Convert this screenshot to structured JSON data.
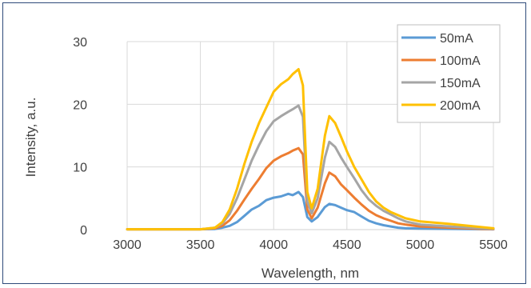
{
  "colors": {
    "frame": "#2f4b7a",
    "grid": "#d9d9d9",
    "text": "#404040"
  },
  "chart_data": {
    "type": "line",
    "title": "",
    "xlabel": "Wavelength, nm",
    "ylabel": "Intensity, a.u.",
    "xlim": [
      3000,
      5500
    ],
    "ylim": [
      0,
      30
    ],
    "xticks": [
      3000,
      3500,
      4000,
      4500,
      5000,
      5500
    ],
    "yticks": [
      0,
      10,
      20,
      30
    ],
    "grid": true,
    "legend": "top-right",
    "series": [
      {
        "name": "50mA",
        "color": "#5b9bd5",
        "points": [
          [
            3000,
            0.05
          ],
          [
            3500,
            0.05
          ],
          [
            3600,
            0.1
          ],
          [
            3650,
            0.3
          ],
          [
            3700,
            0.6
          ],
          [
            3750,
            1.2
          ],
          [
            3800,
            2.2
          ],
          [
            3850,
            3.2
          ],
          [
            3900,
            3.8
          ],
          [
            3950,
            4.7
          ],
          [
            4000,
            5.1
          ],
          [
            4050,
            5.3
          ],
          [
            4100,
            5.7
          ],
          [
            4130,
            5.5
          ],
          [
            4170,
            6.0
          ],
          [
            4200,
            5.2
          ],
          [
            4230,
            2.0
          ],
          [
            4260,
            1.3
          ],
          [
            4300,
            2.0
          ],
          [
            4350,
            3.6
          ],
          [
            4380,
            4.1
          ],
          [
            4420,
            3.9
          ],
          [
            4460,
            3.5
          ],
          [
            4500,
            3.1
          ],
          [
            4550,
            2.8
          ],
          [
            4600,
            2.1
          ],
          [
            4650,
            1.4
          ],
          [
            4700,
            1.0
          ],
          [
            4750,
            0.7
          ],
          [
            4800,
            0.5
          ],
          [
            4850,
            0.3
          ],
          [
            4900,
            0.2
          ],
          [
            5000,
            0.15
          ],
          [
            5500,
            0.05
          ]
        ]
      },
      {
        "name": "100mA",
        "color": "#ed7d31",
        "points": [
          [
            3000,
            0.05
          ],
          [
            3500,
            0.05
          ],
          [
            3600,
            0.2
          ],
          [
            3650,
            0.6
          ],
          [
            3700,
            1.5
          ],
          [
            3750,
            3.0
          ],
          [
            3800,
            4.8
          ],
          [
            3850,
            6.5
          ],
          [
            3900,
            8.1
          ],
          [
            3950,
            9.8
          ],
          [
            4000,
            11.0
          ],
          [
            4050,
            11.7
          ],
          [
            4100,
            12.2
          ],
          [
            4130,
            12.6
          ],
          [
            4170,
            13.0
          ],
          [
            4200,
            12.0
          ],
          [
            4230,
            3.2
          ],
          [
            4260,
            1.8
          ],
          [
            4300,
            3.5
          ],
          [
            4350,
            7.4
          ],
          [
            4380,
            9.1
          ],
          [
            4420,
            8.5
          ],
          [
            4460,
            7.2
          ],
          [
            4500,
            6.3
          ],
          [
            4550,
            5.1
          ],
          [
            4600,
            4.0
          ],
          [
            4650,
            3.0
          ],
          [
            4700,
            2.3
          ],
          [
            4750,
            1.8
          ],
          [
            4800,
            1.4
          ],
          [
            4850,
            1.0
          ],
          [
            4900,
            0.8
          ],
          [
            5000,
            0.5
          ],
          [
            5200,
            0.3
          ],
          [
            5500,
            0.05
          ]
        ]
      },
      {
        "name": "150mA",
        "color": "#a5a5a5",
        "points": [
          [
            3000,
            0.05
          ],
          [
            3500,
            0.05
          ],
          [
            3600,
            0.3
          ],
          [
            3650,
            1.0
          ],
          [
            3700,
            2.5
          ],
          [
            3750,
            5.0
          ],
          [
            3800,
            8.0
          ],
          [
            3850,
            11.0
          ],
          [
            3900,
            13.5
          ],
          [
            3950,
            15.7
          ],
          [
            4000,
            17.3
          ],
          [
            4050,
            18.1
          ],
          [
            4100,
            18.8
          ],
          [
            4130,
            19.2
          ],
          [
            4170,
            19.8
          ],
          [
            4200,
            18.0
          ],
          [
            4230,
            4.5
          ],
          [
            4260,
            2.6
          ],
          [
            4300,
            5.0
          ],
          [
            4350,
            11.5
          ],
          [
            4380,
            14.0
          ],
          [
            4420,
            13.2
          ],
          [
            4460,
            11.5
          ],
          [
            4500,
            10.0
          ],
          [
            4550,
            8.2
          ],
          [
            4600,
            6.3
          ],
          [
            4650,
            4.8
          ],
          [
            4700,
            3.8
          ],
          [
            4750,
            3.0
          ],
          [
            4800,
            2.4
          ],
          [
            4850,
            1.8
          ],
          [
            4900,
            1.3
          ],
          [
            5000,
            0.8
          ],
          [
            5200,
            0.5
          ],
          [
            5500,
            0.1
          ]
        ]
      },
      {
        "name": "200mA",
        "color": "#ffc000",
        "points": [
          [
            3000,
            0.05
          ],
          [
            3500,
            0.05
          ],
          [
            3600,
            0.3
          ],
          [
            3650,
            1.2
          ],
          [
            3700,
            3.2
          ],
          [
            3750,
            6.5
          ],
          [
            3800,
            10.5
          ],
          [
            3850,
            14.0
          ],
          [
            3900,
            17.0
          ],
          [
            3950,
            19.5
          ],
          [
            4000,
            22.0
          ],
          [
            4050,
            23.2
          ],
          [
            4100,
            24.0
          ],
          [
            4130,
            24.8
          ],
          [
            4170,
            25.6
          ],
          [
            4200,
            23.0
          ],
          [
            4230,
            6.0
          ],
          [
            4260,
            3.4
          ],
          [
            4300,
            6.5
          ],
          [
            4350,
            15.0
          ],
          [
            4380,
            18.1
          ],
          [
            4420,
            17.0
          ],
          [
            4460,
            14.8
          ],
          [
            4500,
            12.5
          ],
          [
            4550,
            10.0
          ],
          [
            4600,
            8.0
          ],
          [
            4650,
            6.0
          ],
          [
            4700,
            4.5
          ],
          [
            4750,
            3.5
          ],
          [
            4800,
            2.8
          ],
          [
            4850,
            2.3
          ],
          [
            4900,
            1.8
          ],
          [
            5000,
            1.3
          ],
          [
            5200,
            0.9
          ],
          [
            5500,
            0.2
          ]
        ]
      }
    ]
  }
}
